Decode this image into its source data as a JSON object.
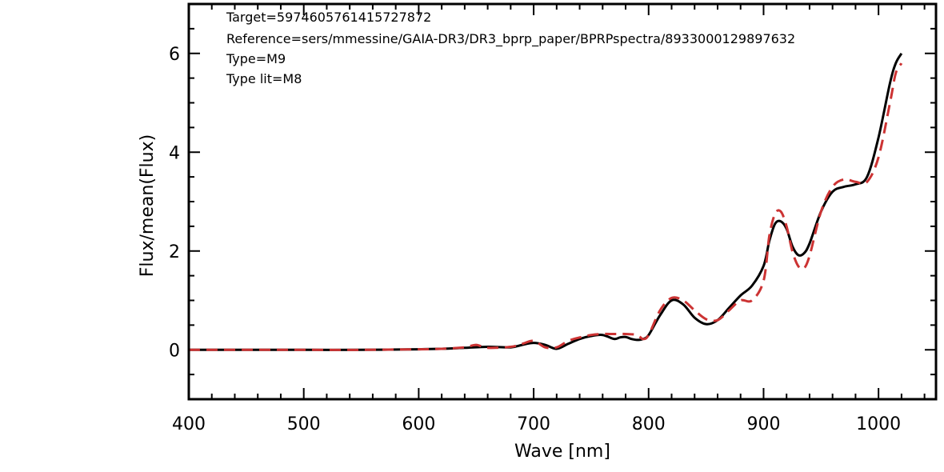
{
  "chart_data": {
    "type": "line",
    "xlabel": "Wave [nm]",
    "ylabel": "Flux/mean(Flux)",
    "xlim": [
      400,
      1050
    ],
    "ylim": [
      -1,
      7
    ],
    "xticks": [
      400,
      500,
      600,
      700,
      800,
      900,
      1000
    ],
    "yticks": [
      0,
      2,
      4,
      6
    ],
    "annotations": [
      "Target=5974605761415727872",
      "Reference=sers/mmessine/GAIA-DR3/DR3_bprp_paper/BPRPspectra/8933000129897632",
      "Type=M9",
      "Type lit=M8"
    ],
    "series": [
      {
        "color": "#000000",
        "style": "solid",
        "x": [
          400,
          450,
          500,
          550,
          600,
          620,
          640,
          660,
          680,
          690,
          700,
          710,
          720,
          730,
          740,
          750,
          760,
          770,
          775,
          780,
          785,
          790,
          795,
          800,
          810,
          820,
          830,
          840,
          850,
          860,
          870,
          880,
          890,
          900,
          905,
          910,
          915,
          920,
          925,
          930,
          935,
          940,
          950,
          960,
          970,
          980,
          990,
          1000,
          1010,
          1015,
          1020
        ],
        "y": [
          0,
          0,
          0,
          0,
          0.01,
          0.02,
          0.04,
          0.06,
          0.05,
          0.1,
          0.14,
          0.1,
          0.02,
          0.12,
          0.22,
          0.28,
          0.3,
          0.22,
          0.25,
          0.26,
          0.22,
          0.2,
          0.22,
          0.3,
          0.7,
          1.0,
          0.92,
          0.65,
          0.52,
          0.6,
          0.85,
          1.1,
          1.3,
          1.7,
          2.2,
          2.55,
          2.6,
          2.45,
          2.1,
          1.92,
          1.95,
          2.15,
          2.8,
          3.2,
          3.3,
          3.35,
          3.5,
          4.3,
          5.4,
          5.8,
          6.0
        ]
      },
      {
        "color": "#cc3333",
        "style": "dashed",
        "x": [
          400,
          450,
          500,
          550,
          600,
          620,
          640,
          650,
          660,
          680,
          690,
          700,
          710,
          720,
          730,
          740,
          750,
          760,
          770,
          780,
          790,
          795,
          800,
          810,
          820,
          830,
          840,
          850,
          860,
          870,
          880,
          890,
          900,
          905,
          910,
          915,
          920,
          925,
          930,
          935,
          940,
          950,
          960,
          970,
          980,
          990,
          1000,
          1010,
          1015,
          1020
        ],
        "y": [
          0,
          0,
          0,
          0,
          0.01,
          0.02,
          0.05,
          0.1,
          0.04,
          0.06,
          0.12,
          0.18,
          0.05,
          0.05,
          0.18,
          0.25,
          0.3,
          0.32,
          0.32,
          0.32,
          0.3,
          0.22,
          0.3,
          0.8,
          1.05,
          1.0,
          0.8,
          0.62,
          0.6,
          0.8,
          1.0,
          1.0,
          1.4,
          2.3,
          2.75,
          2.8,
          2.5,
          2.0,
          1.7,
          1.65,
          1.9,
          2.8,
          3.3,
          3.45,
          3.4,
          3.4,
          3.9,
          5.0,
          5.6,
          5.8
        ]
      }
    ]
  }
}
